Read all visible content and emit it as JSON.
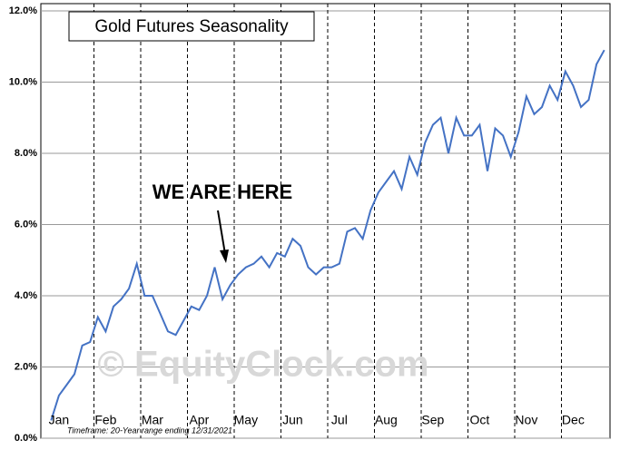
{
  "chart_data": {
    "type": "line",
    "title": "Gold Futures Seasonality",
    "annotation": "WE ARE HERE",
    "footnote": "Timeframe: 20-Year range ending 12/31/2021",
    "watermark": "© EquityClock.com",
    "categories": [
      null,
      "Jan",
      null,
      null,
      null,
      null,
      null,
      "Feb",
      null,
      null,
      null,
      null,
      null,
      "Mar",
      null,
      null,
      null,
      null,
      null,
      "Apr",
      null,
      null,
      null,
      null,
      null,
      "May",
      null,
      null,
      null,
      null,
      null,
      "Jun",
      null,
      null,
      null,
      null,
      null,
      "Jul",
      null,
      null,
      null,
      null,
      null,
      "Aug",
      null,
      null,
      null,
      null,
      null,
      "Sep",
      null,
      null,
      null,
      null,
      null,
      "Oct",
      null,
      null,
      null,
      null,
      null,
      "Nov",
      null,
      null,
      null,
      null,
      null,
      "Dec",
      null,
      null,
      null,
      null
    ],
    "series": [
      {
        "color": "#4472c4",
        "values": [
          0.5,
          1.2,
          1.5,
          1.8,
          2.6,
          2.7,
          3.4,
          3.0,
          3.7,
          3.9,
          4.2,
          4.9,
          4.0,
          4.0,
          3.5,
          3.0,
          2.9,
          3.3,
          3.7,
          3.6,
          4.0,
          4.8,
          3.9,
          4.3,
          4.6,
          4.8,
          4.9,
          5.1,
          4.8,
          5.2,
          5.1,
          5.6,
          5.4,
          4.8,
          4.6,
          4.8,
          4.8,
          4.9,
          5.8,
          5.9,
          5.6,
          6.4,
          6.9,
          7.2,
          7.5,
          7.0,
          7.9,
          7.4,
          8.3,
          8.8,
          9.0,
          8.0,
          9.0,
          8.5,
          8.5,
          8.8,
          7.5,
          8.7,
          8.5,
          7.9,
          8.6,
          9.6,
          9.1,
          9.3,
          9.9,
          9.5,
          10.3,
          9.9,
          9.3,
          9.5,
          10.5,
          10.9
        ]
      }
    ],
    "ylim": [
      0,
      12
    ],
    "yticks": [
      {
        "value": 0,
        "label": "0.0%"
      },
      {
        "value": 2,
        "label": "2.0%"
      },
      {
        "value": 4,
        "label": "4.0%"
      },
      {
        "value": 6,
        "label": "6.0%"
      },
      {
        "value": 8,
        "label": "8.0%"
      },
      {
        "value": 10,
        "label": "10.0%"
      },
      {
        "value": 12,
        "label": "12.0%"
      }
    ],
    "grid": true
  }
}
